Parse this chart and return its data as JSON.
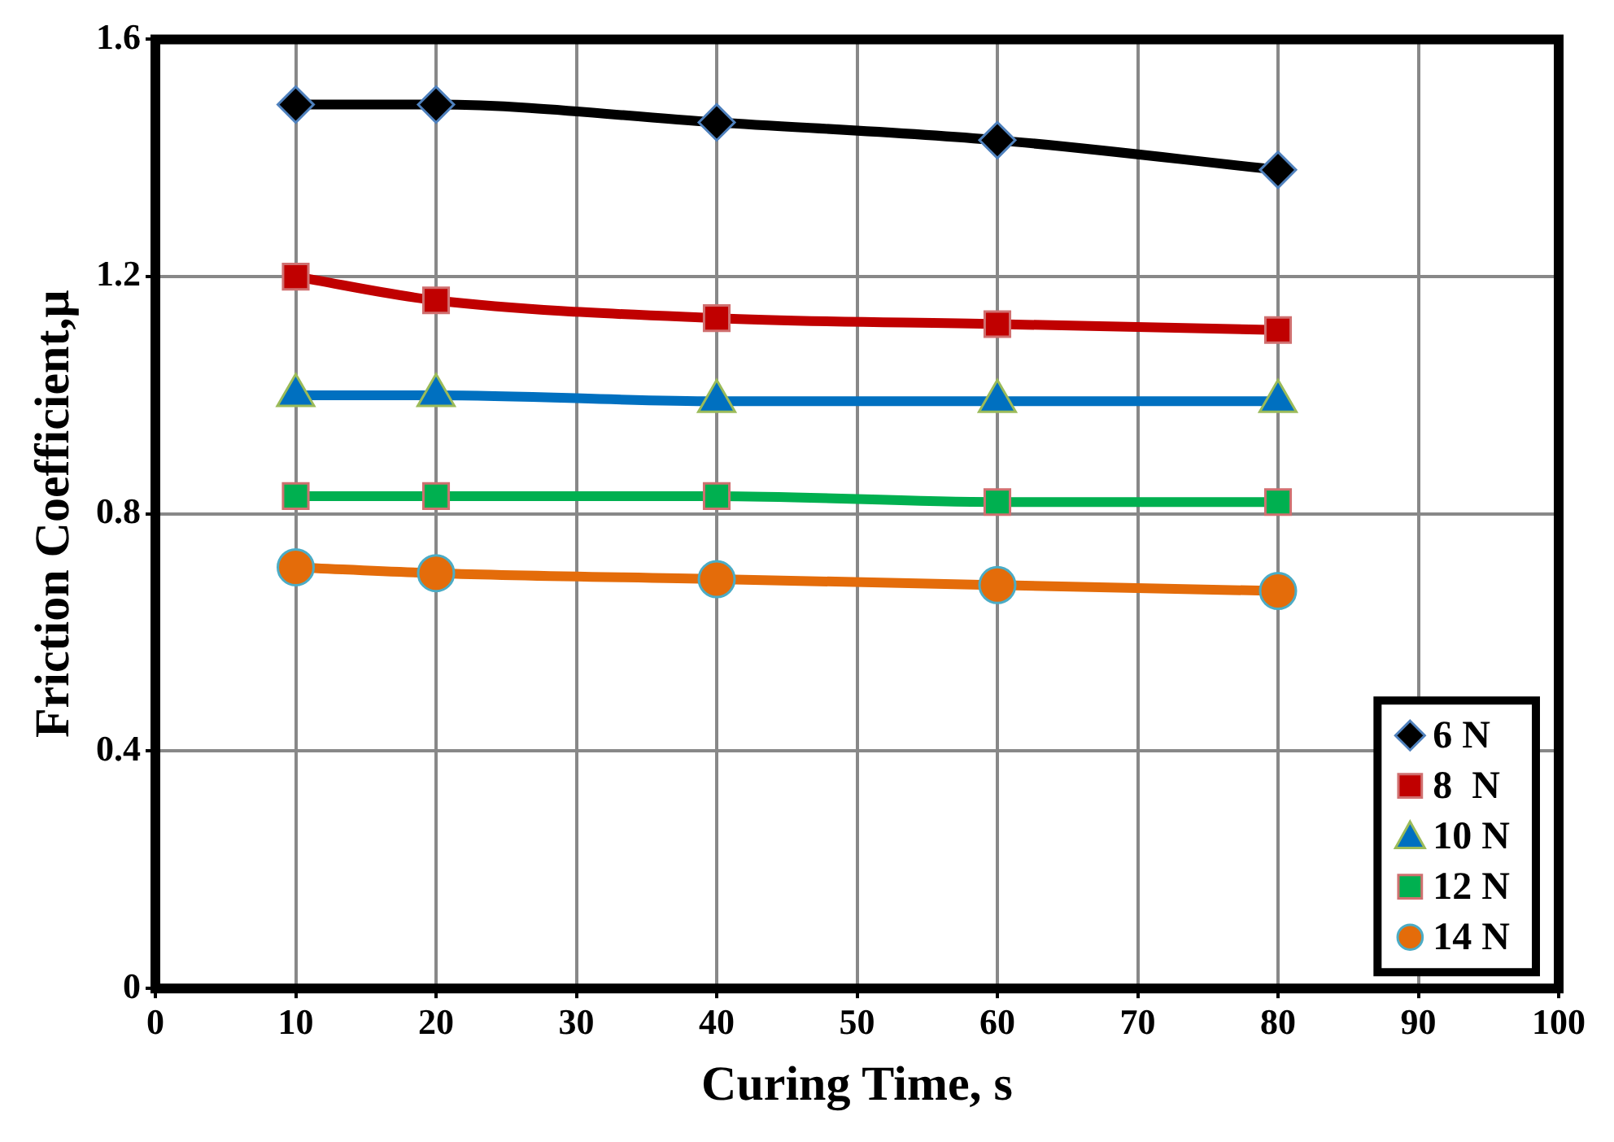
{
  "chart_data": {
    "type": "line",
    "xlabel": "Curing Time, s",
    "ylabel": "Friction Coefficient,μ",
    "x": [
      10,
      20,
      40,
      60,
      80
    ],
    "xlim": [
      0,
      100
    ],
    "xticks": [
      0,
      10,
      20,
      30,
      40,
      50,
      60,
      70,
      80,
      90,
      100
    ],
    "ylim": [
      0,
      1.6
    ],
    "yticks": [
      0,
      0.4,
      0.8,
      1.2,
      1.6
    ],
    "grid": true,
    "legend": "bottom right",
    "line_style": "solid",
    "series": [
      {
        "name": "6 N",
        "color": "#000000",
        "marker": "diamond",
        "values": [
          1.49,
          1.49,
          1.46,
          1.43,
          1.38
        ]
      },
      {
        "name": "8  N",
        "color": "#c00000",
        "marker": "square",
        "values": [
          1.2,
          1.16,
          1.13,
          1.12,
          1.11
        ]
      },
      {
        "name": "10 N",
        "color": "#0070c0",
        "marker": "triangle",
        "values": [
          1.0,
          1.0,
          0.99,
          0.99,
          0.99
        ]
      },
      {
        "name": "12 N",
        "color": "#00b050",
        "marker": "square",
        "values": [
          0.83,
          0.83,
          0.83,
          0.82,
          0.82
        ]
      },
      {
        "name": "14 N",
        "color": "#e46c0a",
        "marker": "circle",
        "values": [
          0.71,
          0.7,
          0.69,
          0.68,
          0.67
        ]
      }
    ]
  }
}
